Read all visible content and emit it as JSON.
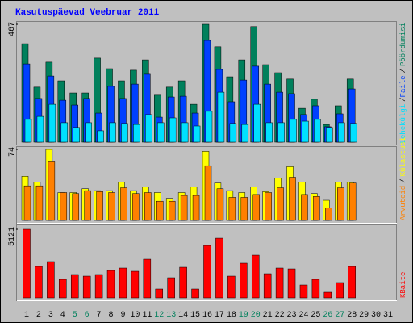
{
  "chart_data": [
    {
      "type": "bar",
      "title": "Kasutuspäevad Veebruar 2011",
      "separator": "/",
      "ylim": [
        0,
        467
      ],
      "yticks": [
        467
      ],
      "series": [
        {
          "name": "Pöördumisi",
          "color": "#00805c",
          "values": [
            390,
            218,
            317,
            243,
            195,
            195,
            333,
            291,
            243,
            285,
            326,
            186,
            218,
            243,
            150,
            467,
            378,
            259,
            326,
            458,
            307,
            275,
            250,
            134,
            170,
            70,
            144,
            250,
            null,
            null,
            null
          ]
        },
        {
          "name": "Faile",
          "color": "#0040ff",
          "values": [
            310,
            173,
            262,
            166,
            147,
            173,
            115,
            221,
            173,
            230,
            269,
            99,
            179,
            182,
            115,
            403,
            288,
            160,
            246,
            301,
            230,
            198,
            192,
            109,
            144,
            61,
            112,
            211,
            null,
            null,
            null
          ]
        },
        {
          "name": "Lehekülgi",
          "color": "#00e0ff",
          "values": [
            90,
            102,
            150,
            77,
            58,
            77,
            45,
            77,
            74,
            70,
            109,
            77,
            96,
            77,
            64,
            122,
            198,
            74,
            70,
            150,
            77,
            77,
            90,
            83,
            90,
            58,
            77,
            74,
            null,
            null,
            null
          ]
        }
      ]
    },
    {
      "type": "bar",
      "separator": "/",
      "ylim": [
        0,
        74
      ],
      "yticks": [
        74
      ],
      "series": [
        {
          "name": "Külastusi",
          "color": "#ffff00",
          "values": [
            46,
            40,
            74,
            29,
            29,
            33,
            31,
            31,
            40,
            31,
            35,
            29,
            23,
            29,
            35,
            72,
            39,
            31,
            29,
            35,
            30,
            44,
            56,
            40,
            28,
            21,
            40,
            40,
            null,
            null,
            null
          ]
        },
        {
          "name": "Arvuteid",
          "color": "#ff8000",
          "values": [
            36,
            36,
            61,
            29,
            28,
            31,
            30,
            29,
            34,
            28,
            29,
            20,
            20,
            26,
            26,
            57,
            33,
            24,
            24,
            27,
            29,
            34,
            45,
            27,
            25,
            13,
            34,
            39,
            null,
            null,
            null
          ]
        }
      ]
    },
    {
      "type": "bar",
      "ylim": [
        0,
        5121
      ],
      "yticks": [
        5121
      ],
      "categories": [
        "1",
        "2",
        "3",
        "4",
        "5",
        "6",
        "7",
        "8",
        "9",
        "10",
        "11",
        "12",
        "13",
        "14",
        "15",
        "16",
        "17",
        "18",
        "19",
        "20",
        "21",
        "22",
        "23",
        "24",
        "25",
        "26",
        "27",
        "28",
        "29",
        "30",
        "31"
      ],
      "category_colors": [
        "#000000",
        "#000000",
        "#000000",
        "#000000",
        "#00805c",
        "#00805c",
        "#000000",
        "#000000",
        "#000000",
        "#000000",
        "#000000",
        "#00805c",
        "#00805c",
        "#000000",
        "#000000",
        "#000000",
        "#000000",
        "#000000",
        "#00805c",
        "#00805c",
        "#000000",
        "#000000",
        "#000000",
        "#000000",
        "#000000",
        "#00805c",
        "#00805c",
        "#000000",
        "#000000",
        "#000000",
        "#000000"
      ],
      "series": [
        {
          "name": "KBaite",
          "color": "#ff0000",
          "values": [
            5121,
            2350,
            2710,
            1385,
            1746,
            1625,
            1746,
            2047,
            2228,
            1987,
            2890,
            662,
            1505,
            2288,
            662,
            3913,
            4455,
            1625,
            2590,
            3191,
            1806,
            2228,
            2167,
            963,
            1385,
            421,
            1144,
            2348,
            null,
            null,
            null
          ]
        }
      ]
    }
  ]
}
